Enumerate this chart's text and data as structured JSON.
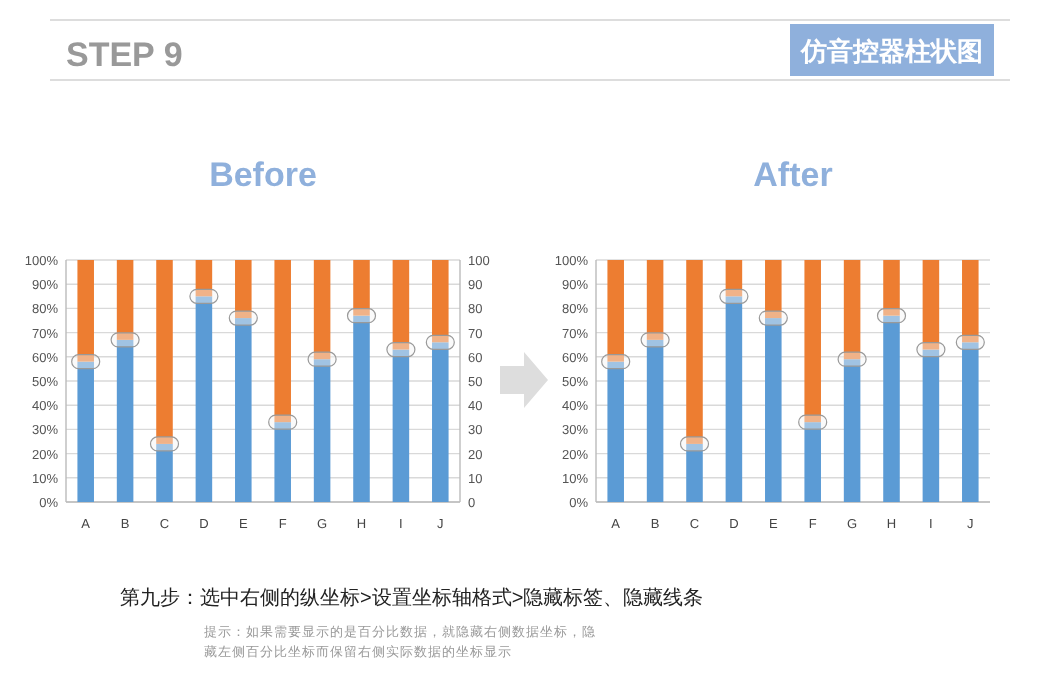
{
  "chart_data": [
    {
      "type": "bar",
      "stacked": true,
      "title": "Before",
      "grid": "y",
      "categories": [
        "A",
        "B",
        "C",
        "D",
        "E",
        "F",
        "G",
        "H",
        "I",
        "J"
      ],
      "series": [
        {
          "color": "#5b9bd5",
          "values": [
            58,
            67,
            24,
            85,
            76,
            33,
            59,
            77,
            63,
            66
          ]
        },
        {
          "color": "#ed7d31",
          "values": [
            42,
            33,
            76,
            15,
            24,
            67,
            41,
            23,
            37,
            34
          ]
        },
        {
          "type": "scatter",
          "marker": "square",
          "color": "#f4f4f4",
          "x": [
            "A",
            "B",
            "C",
            "D",
            "E",
            "F",
            "G",
            "H",
            "I",
            "J"
          ],
          "values": [
            58,
            67,
            24,
            85,
            76,
            33,
            59,
            77,
            63,
            66
          ]
        }
      ],
      "ylim": [
        0,
        100
      ],
      "yticks": [
        {
          "value": 0,
          "label": "0%"
        },
        {
          "value": 10,
          "label": "10%"
        },
        {
          "value": 20,
          "label": "20%"
        },
        {
          "value": 30,
          "label": "30%"
        },
        {
          "value": 40,
          "label": "40%"
        },
        {
          "value": 50,
          "label": "50%"
        },
        {
          "value": 60,
          "label": "60%"
        },
        {
          "value": 70,
          "label": "70%"
        },
        {
          "value": 80,
          "label": "80%"
        },
        {
          "value": 90,
          "label": "90%"
        },
        {
          "value": 100,
          "label": "100%"
        }
      ],
      "y2lim": [
        0,
        100
      ],
      "y2ticks": [
        0,
        10,
        20,
        30,
        40,
        50,
        60,
        70,
        80,
        90,
        100
      ],
      "annotations": [
        "STEP 9",
        "仿音控器柱状图",
        "第九步：选中右侧的纵坐标>设置坐标轴格式>隐藏标签、隐藏线条",
        "提示：如果需要显示的是百分比数据，就隐藏右侧数据坐标，隐",
        "藏左侧百分比坐标而保留右侧实际数据的坐标显示"
      ]
    },
    {
      "type": "bar",
      "stacked": true,
      "title": "After",
      "grid": "y",
      "categories": [
        "A",
        "B",
        "C",
        "D",
        "E",
        "F",
        "G",
        "H",
        "I",
        "J"
      ],
      "series": [
        {
          "color": "#5b9bd5",
          "values": [
            58,
            67,
            24,
            85,
            76,
            33,
            59,
            77,
            63,
            66
          ]
        },
        {
          "color": "#ed7d31",
          "values": [
            42,
            33,
            76,
            15,
            24,
            67,
            41,
            23,
            37,
            34
          ]
        },
        {
          "type": "scatter",
          "marker": "square",
          "color": "#f4f4f4",
          "x": [
            "A",
            "B",
            "C",
            "D",
            "E",
            "F",
            "G",
            "H",
            "I",
            "J"
          ],
          "values": [
            58,
            67,
            24,
            85,
            76,
            33,
            59,
            77,
            63,
            66
          ]
        }
      ],
      "ylim": [
        0,
        100
      ],
      "yticks": [
        {
          "value": 0,
          "label": "0%"
        },
        {
          "value": 10,
          "label": "10%"
        },
        {
          "value": 20,
          "label": "20%"
        },
        {
          "value": 30,
          "label": "30%"
        },
        {
          "value": 40,
          "label": "40%"
        },
        {
          "value": 50,
          "label": "50%"
        },
        {
          "value": 60,
          "label": "60%"
        },
        {
          "value": 70,
          "label": "70%"
        },
        {
          "value": 80,
          "label": "80%"
        },
        {
          "value": 90,
          "label": "90%"
        },
        {
          "value": 100,
          "label": "100%"
        }
      ]
    }
  ]
}
